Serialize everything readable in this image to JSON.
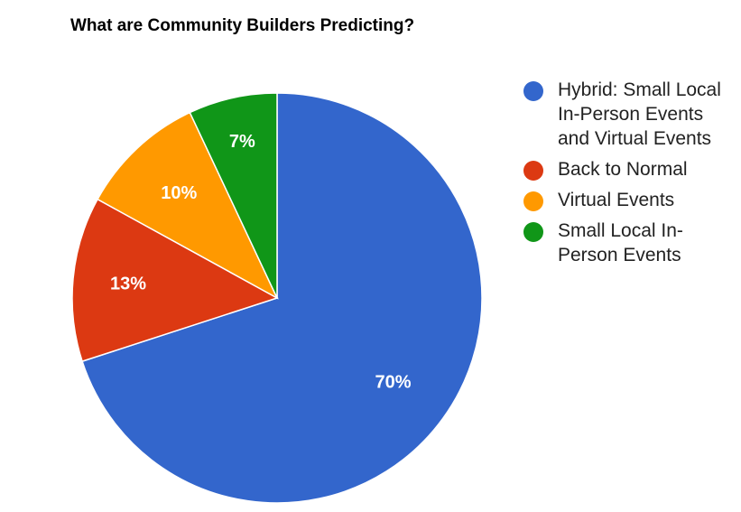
{
  "chart_data": {
    "type": "pie",
    "title": "What are Community Builders Predicting?",
    "slices": [
      {
        "label": "Hybrid: Small Local In-Person Events and Virtual Events",
        "value": 70,
        "display": "70%",
        "color": "#3366cc"
      },
      {
        "label": "Back to Normal",
        "value": 13,
        "display": "13%",
        "color": "#dc3912"
      },
      {
        "label": "Virtual Events",
        "value": 10,
        "display": "10%",
        "color": "#ff9900"
      },
      {
        "label": "Small Local In-Person Events",
        "value": 7,
        "display": "7%",
        "color": "#109618"
      }
    ],
    "legend_position": "right"
  }
}
